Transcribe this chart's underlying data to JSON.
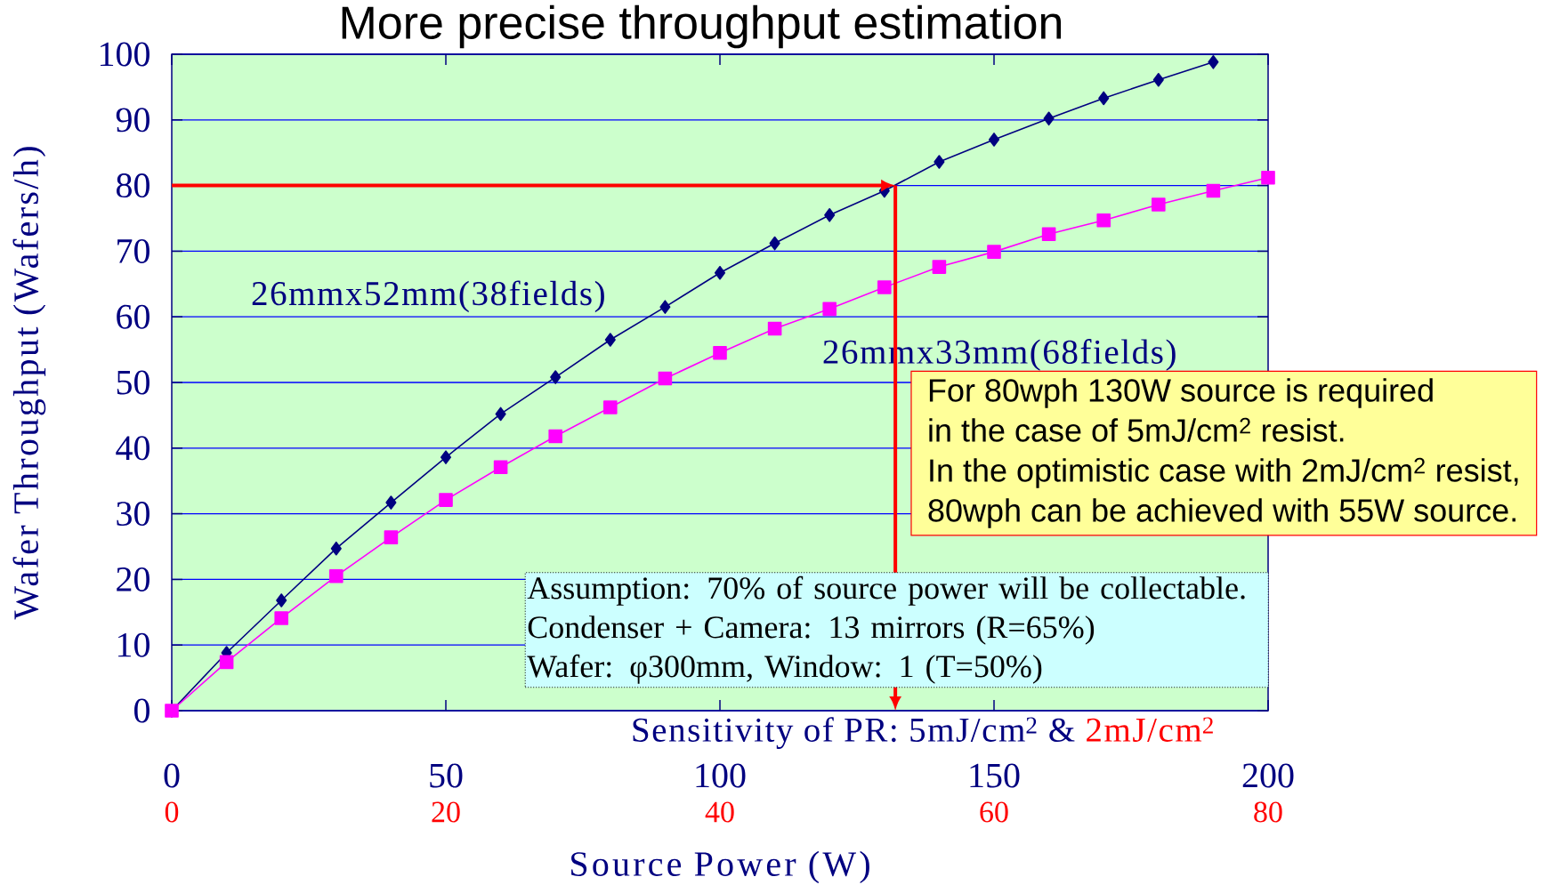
{
  "chart_data": {
    "type": "line",
    "title": "More precise throughput estimation",
    "xlabel": "Source Power (W)",
    "ylabel": "Wafer Throughput (Wafers/h)",
    "x": [
      0,
      10,
      20,
      30,
      40,
      50,
      60,
      70,
      80,
      90,
      100,
      110,
      120,
      130,
      140,
      150,
      160,
      170,
      180,
      190,
      200
    ],
    "series": [
      {
        "color": "#000080",
        "marker": "diamond",
        "values": [
          0,
          8.8,
          16.8,
          24.7,
          31.7,
          38.6,
          45.2,
          50.8,
          56.5,
          61.5,
          66.7,
          71.2,
          75.5,
          79.2,
          83.6,
          87.0,
          90.2,
          93.3,
          96.1,
          98.8,
          null
        ]
      },
      {
        "color": "#ff00ff",
        "marker": "square",
        "values": [
          0,
          7.4,
          14.1,
          20.5,
          26.4,
          32.1,
          37.1,
          41.8,
          46.2,
          50.6,
          54.5,
          58.2,
          61.2,
          64.5,
          67.6,
          69.9,
          72.6,
          74.7,
          77.1,
          79.2,
          81.2
        ]
      }
    ],
    "xlim": [
      0,
      200
    ],
    "xticks": [
      0,
      50,
      100,
      150,
      200
    ],
    "ylim": [
      0,
      100
    ],
    "yticks": [
      0,
      10,
      20,
      30,
      40,
      50,
      60,
      70,
      80,
      90,
      100
    ],
    "x2lim": [
      0,
      80
    ],
    "x2ticks": [
      0,
      20,
      40,
      60,
      80
    ],
    "grid": "y",
    "ref_lines": [
      {
        "axis": "y",
        "value": 80,
        "color": "#ff0000"
      },
      {
        "axis": "x",
        "value": 132,
        "color": "#ff0000"
      }
    ],
    "annotations": [
      "26mmx52mm(38fields)",
      "26mmx33mm(68fields)",
      "Sensitivity of PR: 5mJ/cm$^{2}$ &",
      "2mJ/cm$^{2}$",
      "For 80wph 130W source is required",
      "in the case of 5mJ/cm$^{2}$ resist.",
      "In the optimistic case with 2mJ/cm$^{2}$ resist,",
      "80wph can be achieved with 55W source.",
      "Assumption: 70% of source power will be collectable.",
      "Condenser + Camera: 13 mirrors (R=65%)",
      "Wafer: φ300mm,  Window: 1 (T=50%)"
    ]
  }
}
